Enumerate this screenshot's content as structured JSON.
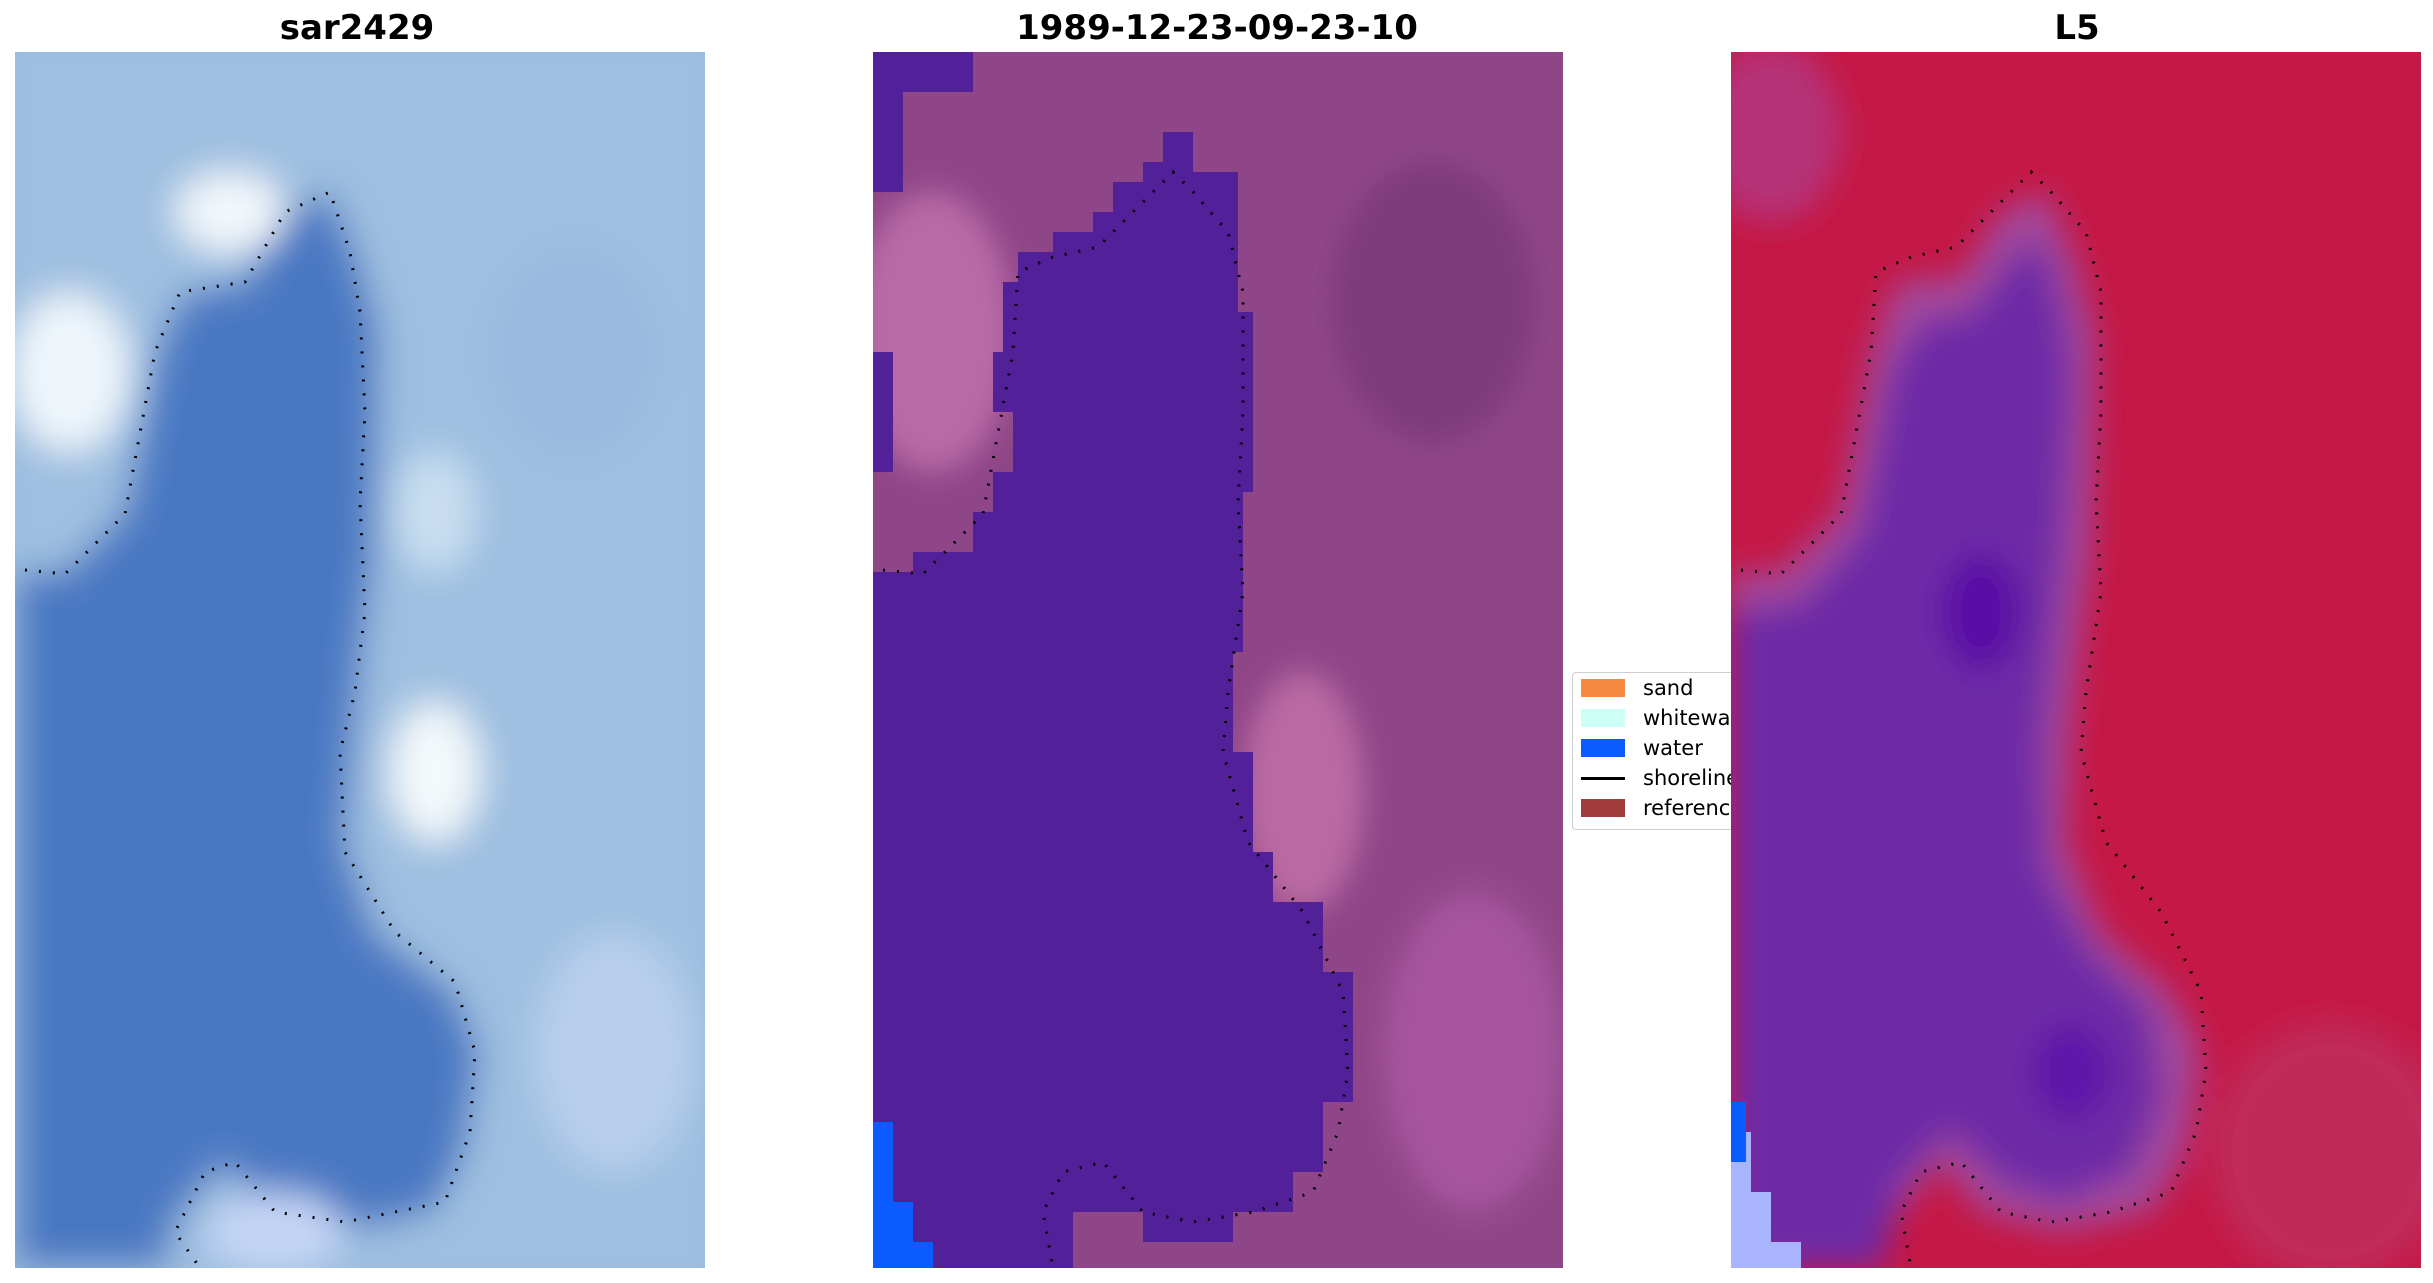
{
  "panels": [
    {
      "title": "sar2429",
      "kind": "rgb"
    },
    {
      "title": "1989-12-23-09-23-10",
      "kind": "classified"
    },
    {
      "title": "L5",
      "kind": "index"
    }
  ],
  "legend": {
    "items": [
      {
        "label": "sand",
        "type": "patch",
        "color": "#f4893f"
      },
      {
        "label": "whitewat",
        "type": "patch",
        "color": "#ccfff5"
      },
      {
        "label": "water",
        "type": "patch",
        "color": "#0a5cff"
      },
      {
        "label": "shoreline",
        "type": "line",
        "color": "#000000"
      },
      {
        "label": "reference",
        "type": "patch",
        "color": "#a03c3c"
      }
    ]
  },
  "colors": {
    "rgb_water": "#4a78c2",
    "rgb_sand": "#a9c5e4",
    "rgb_bright": "#eef6fb",
    "class_water": "#52219a",
    "class_land": "#9a4a8e",
    "class_blue": "#0a5cff",
    "index_land": "#c0103a",
    "index_water": "#7a30b0",
    "index_blue": "#a9b4ff"
  }
}
